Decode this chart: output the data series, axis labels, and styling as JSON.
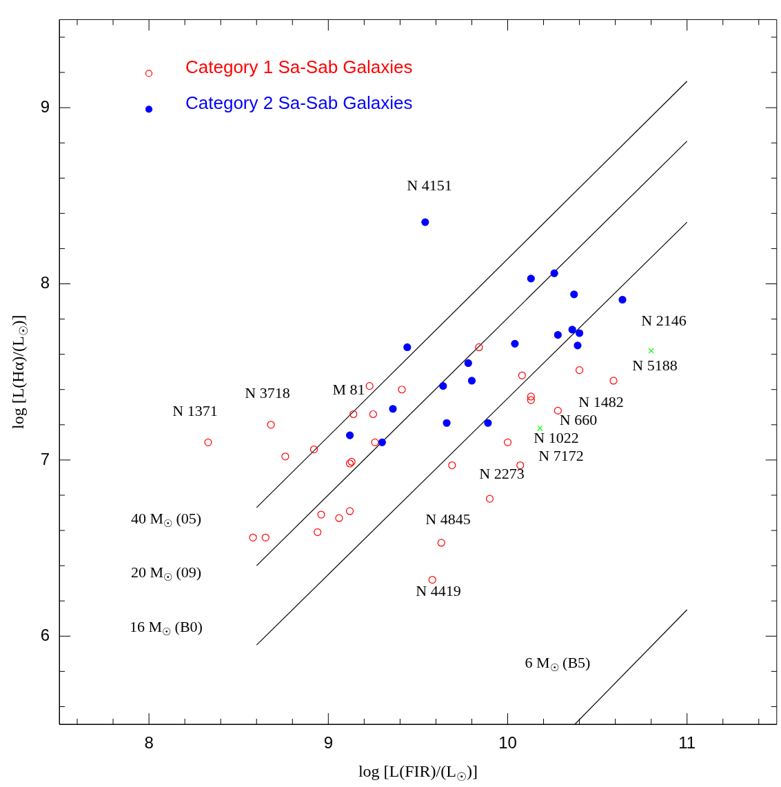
{
  "chart_data": {
    "type": "scatter",
    "xlabel": "log [L(FIR)/(L$_{☉}$)]",
    "ylabel": "log [L(Hα)/(L$_{☉}$)]",
    "xlim": [
      7.5,
      11.5
    ],
    "ylim": [
      5.5,
      9.5
    ],
    "xticks": [
      {
        "value": 7.6,
        "label": null
      },
      {
        "value": 7.8,
        "label": null
      },
      8,
      {
        "value": 8.2,
        "label": null
      },
      {
        "value": 8.4,
        "label": null
      },
      {
        "value": 8.6,
        "label": null
      },
      {
        "value": 8.8,
        "label": null
      },
      9,
      {
        "value": 9.2,
        "label": null
      },
      {
        "value": 9.4,
        "label": null
      },
      {
        "value": 9.6,
        "label": null
      },
      {
        "value": 9.8,
        "label": null
      },
      10,
      {
        "value": 10.2,
        "label": null
      },
      {
        "value": 10.4,
        "label": null
      },
      {
        "value": 10.6,
        "label": null
      },
      {
        "value": 10.8,
        "label": null
      },
      11,
      {
        "value": 11.2,
        "label": null
      },
      {
        "value": 11.4,
        "label": null
      }
    ],
    "yticks": [
      {
        "value": 5.6,
        "label": null
      },
      {
        "value": 5.8,
        "label": null
      },
      6,
      {
        "value": 6.2,
        "label": null
      },
      {
        "value": 6.4,
        "label": null
      },
      {
        "value": 6.6,
        "label": null
      },
      {
        "value": 6.8,
        "label": null
      },
      7,
      {
        "value": 7.2,
        "label": null
      },
      {
        "value": 7.4,
        "label": null
      },
      {
        "value": 7.6,
        "label": null
      },
      {
        "value": 7.8,
        "label": null
      },
      8,
      {
        "value": 8.2,
        "label": null
      },
      {
        "value": 8.4,
        "label": null
      },
      {
        "value": 8.6,
        "label": null
      },
      {
        "value": 8.8,
        "label": null
      },
      9,
      {
        "value": 9.2,
        "label": null
      },
      {
        "value": 9.4,
        "label": null
      }
    ],
    "grid": false,
    "legend": "top left",
    "series": [
      {
        "name": "Category 1 Sa-Sab Galaxies",
        "color": "#ff0000",
        "marker": "circle",
        "x": [
          8.33,
          8.68,
          8.76,
          8.92,
          9.23,
          9.41,
          9.14,
          9.25,
          9.26,
          9.13,
          9.12,
          8.58,
          8.65,
          8.96,
          9.06,
          9.12,
          8.94,
          9.63,
          9.58,
          9.84,
          10.08,
          10.13,
          10.13,
          10.4,
          10.59,
          10.28,
          10.0,
          10.07,
          9.69,
          9.9
        ],
        "values": [
          7.1,
          7.2,
          7.02,
          7.06,
          7.42,
          7.4,
          7.26,
          7.26,
          7.1,
          6.99,
          6.98,
          6.56,
          6.56,
          6.69,
          6.67,
          6.71,
          6.59,
          6.53,
          6.32,
          7.64,
          7.48,
          7.36,
          7.34,
          7.51,
          7.45,
          7.28,
          7.1,
          6.97,
          6.97,
          6.78
        ]
      },
      {
        "name": "Category 2 Sa-Sab Galaxies",
        "color": "#0000ff",
        "marker": "circle",
        "x": [
          9.54,
          10.13,
          10.26,
          10.37,
          10.64,
          10.36,
          10.28,
          10.4,
          10.39,
          10.04,
          9.78,
          9.8,
          9.64,
          9.66,
          9.89,
          9.44,
          9.36,
          9.12,
          9.3
        ],
        "values": [
          8.35,
          8.03,
          8.06,
          7.94,
          7.91,
          7.74,
          7.71,
          7.72,
          7.65,
          7.66,
          7.55,
          7.45,
          7.42,
          7.21,
          7.21,
          7.64,
          7.29,
          7.14,
          7.1
        ]
      },
      {
        "color": "#00ff00",
        "marker": "cross",
        "x": [
          10.8,
          10.18
        ],
        "values": [
          7.62,
          7.18
        ]
      },
      {
        "type": "line",
        "color": "#000000",
        "marker": "none",
        "x": [
          8.6,
          11.0
        ],
        "values": [
          6.73,
          9.15
        ]
      },
      {
        "type": "line",
        "color": "#000000",
        "marker": "none",
        "x": [
          8.6,
          11.0
        ],
        "values": [
          6.4,
          8.81
        ]
      },
      {
        "type": "line",
        "color": "#000000",
        "marker": "none",
        "x": [
          8.6,
          11.0
        ],
        "values": [
          5.95,
          8.35
        ]
      },
      {
        "type": "line",
        "color": "#000000",
        "marker": "none",
        "x": [
          10.375,
          11.0
        ],
        "values": [
          5.5,
          6.15
        ]
      }
    ],
    "annotations": [
      "N 4151",
      "N 3718",
      "N 1371",
      "M 81",
      "N 2146",
      "N 5188",
      "N 1482",
      "N 660",
      "N 1022",
      "N 7172",
      "N 2273",
      "N 4845",
      "N 4419",
      "40 M$_{☉}$ (05)",
      "20 M$_{☉}$ (09)",
      "16 M$_{☉}$ (B0)",
      "6 M$_{☉}$ (B5)"
    ]
  }
}
